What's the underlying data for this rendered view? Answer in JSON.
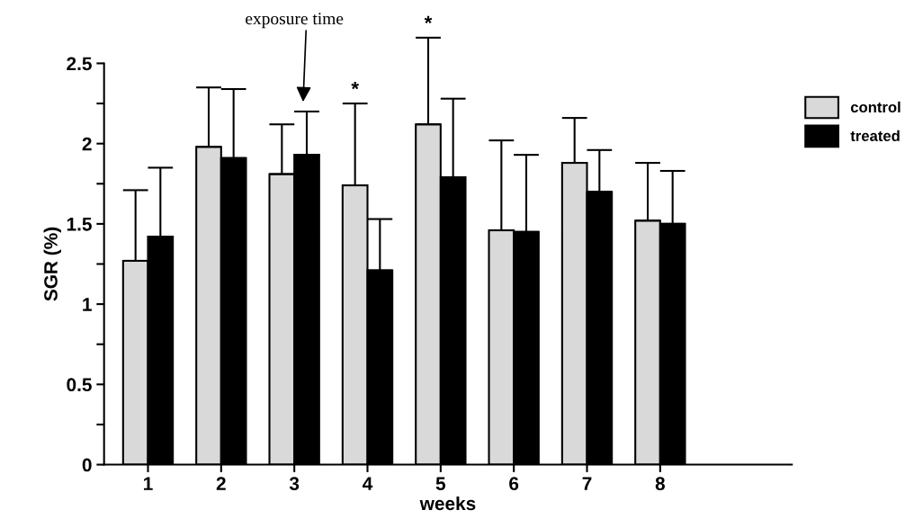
{
  "chart_data": {
    "type": "bar",
    "xlabel": "weeks",
    "ylabel": "SGR (%)",
    "categories": [
      "1",
      "2",
      "3",
      "4",
      "5",
      "6",
      "7",
      "8"
    ],
    "series": [
      {
        "name": "control",
        "color": "#d9d9d9",
        "values": [
          1.27,
          1.98,
          1.81,
          1.74,
          2.12,
          1.46,
          1.88,
          1.52
        ],
        "errors": [
          [
            1.27,
            1.71
          ],
          [
            1.98,
            2.35
          ],
          [
            1.81,
            2.12
          ],
          [
            1.74,
            2.25
          ],
          [
            2.12,
            2.66
          ],
          [
            1.46,
            2.02
          ],
          [
            1.88,
            2.16
          ],
          [
            1.52,
            1.88
          ]
        ]
      },
      {
        "name": "treated",
        "color": "#000000",
        "values": [
          1.42,
          1.91,
          1.93,
          1.21,
          1.79,
          1.45,
          1.7,
          1.5
        ],
        "errors": [
          [
            1.42,
            1.85
          ],
          [
            1.91,
            2.34
          ],
          [
            1.93,
            2.2
          ],
          [
            1.21,
            1.53
          ],
          [
            1.79,
            2.28
          ],
          [
            1.45,
            1.93
          ],
          [
            1.7,
            1.96
          ],
          [
            1.5,
            1.83
          ]
        ]
      }
    ],
    "ylim": [
      0,
      2.5
    ],
    "yticks": [
      0,
      {
        "value": 0.25,
        "label": null
      },
      0.5,
      {
        "value": 0.75,
        "label": null
      },
      1,
      {
        "value": 1.25,
        "label": null
      },
      1.5,
      {
        "value": 1.75,
        "label": null
      },
      2,
      {
        "value": 2.25,
        "label": null
      },
      2.5
    ],
    "annotations": [
      "exposure time",
      {
        "text": "*",
        "x": "4",
        "y": 2.25
      },
      {
        "text": "*",
        "x": "5",
        "y": 2.66
      }
    ],
    "grid": false,
    "legend": "right"
  }
}
